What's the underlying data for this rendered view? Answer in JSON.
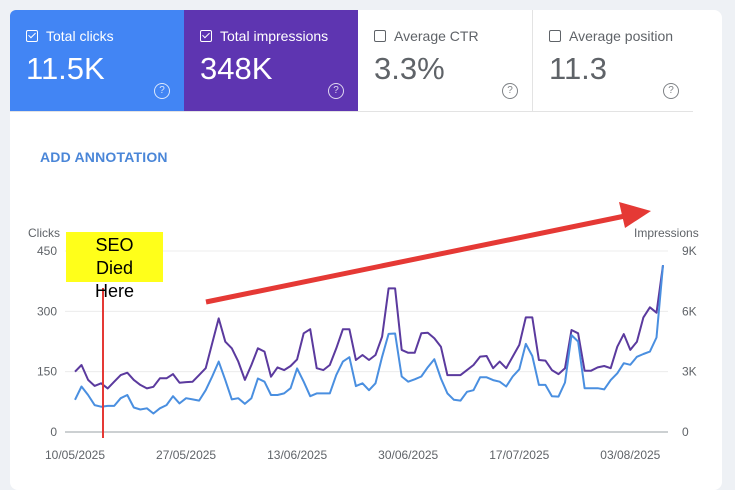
{
  "metrics": [
    {
      "label": "Total clicks",
      "value": "11.5K",
      "checked": true,
      "color": "#4285f4"
    },
    {
      "label": "Total impressions",
      "value": "348K",
      "checked": true,
      "color": "#5e35b1"
    },
    {
      "label": "Average CTR",
      "value": "3.3%",
      "checked": false
    },
    {
      "label": "Average position",
      "value": "11.3",
      "checked": false
    }
  ],
  "help_glyph": "?",
  "add_annotation": "ADD ANNOTATION",
  "annotation": {
    "text_line1": "SEO Died Here",
    "date": "14/05/2025",
    "box_color": "#ffff1a",
    "line_color": "#e53935",
    "trend_arrow_color": "#e53935",
    "trend_arrow": "upward arrow drawn over chart"
  },
  "chart_data": {
    "type": "line",
    "start_date": "10/05/2025",
    "end_date": "08/08/2025",
    "x_tick_labels": [
      "10/05/2025",
      "27/05/2025",
      "13/06/2025",
      "30/06/2025",
      "17/07/2025",
      "03/08/2025"
    ],
    "left_axis": {
      "label": "Clicks",
      "ticks": [
        "0",
        "150",
        "300",
        "450"
      ],
      "ylim": [
        0,
        450
      ]
    },
    "right_axis": {
      "label": "Impressions",
      "ticks": [
        "0",
        "3K",
        "6K",
        "9K"
      ],
      "ylim": [
        0,
        9000
      ]
    },
    "grid": true,
    "series": [
      {
        "name": "Clicks",
        "axis": "left",
        "color": "#4a8fe0",
        "values": [
          80,
          113,
          92,
          67,
          63,
          65,
          65,
          84,
          92,
          61,
          56,
          59,
          46,
          59,
          67,
          89,
          71,
          84,
          81,
          78,
          104,
          138,
          175,
          129,
          81,
          84,
          70,
          84,
          133,
          125,
          92,
          92,
          96,
          109,
          158,
          125,
          89,
          96,
          96,
          96,
          142,
          175,
          186,
          114,
          121,
          104,
          121,
          187,
          244,
          245,
          138,
          125,
          131,
          138,
          161,
          181,
          133,
          96,
          80,
          78,
          100,
          104,
          136,
          136,
          129,
          125,
          113,
          138,
          156,
          219,
          189,
          117,
          117,
          89,
          88,
          123,
          241,
          225,
          109,
          109,
          109,
          106,
          129,
          146,
          171,
          167,
          187,
          194,
          200,
          235,
          415
        ]
      },
      {
        "name": "Impressions",
        "axis": "right",
        "color": "#5b3a9e",
        "values": [
          3000,
          3330,
          2590,
          2290,
          2420,
          2170,
          2500,
          2830,
          2950,
          2590,
          2340,
          2170,
          2250,
          2670,
          2670,
          2880,
          2450,
          2480,
          2500,
          2830,
          3170,
          4410,
          5650,
          4490,
          4160,
          3500,
          2590,
          3330,
          4160,
          4000,
          2750,
          3210,
          3080,
          3280,
          3610,
          4910,
          5110,
          3170,
          3080,
          3330,
          4160,
          5110,
          5110,
          3580,
          3830,
          3580,
          3830,
          4740,
          7140,
          7140,
          4080,
          3940,
          3940,
          4910,
          4940,
          4660,
          4240,
          2830,
          2830,
          2830,
          3080,
          3330,
          3750,
          3780,
          3170,
          3500,
          3170,
          3750,
          4330,
          5700,
          5700,
          3580,
          3550,
          3080,
          2880,
          3170,
          5070,
          4910,
          3050,
          3050,
          3210,
          3280,
          3170,
          4240,
          4870,
          4080,
          4490,
          5700,
          6200,
          5930,
          8300
        ]
      }
    ]
  }
}
